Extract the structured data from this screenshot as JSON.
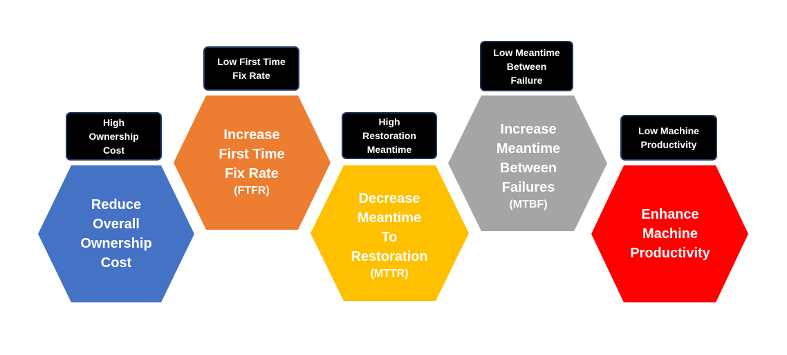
{
  "colors": {
    "blue": "#4472c4",
    "orange": "#ed7d31",
    "gold": "#ffc000",
    "gray": "#a5a5a5",
    "red": "#ff0000",
    "label_background": "#000000",
    "label_border": "#1f3864"
  },
  "items": [
    {
      "color": "#4472c4",
      "label": [
        "High",
        "Ownership",
        "Cost"
      ],
      "hex": [
        "Reduce",
        "Overall",
        "Ownership",
        "Cost"
      ],
      "abbr": ""
    },
    {
      "color": "#ed7d31",
      "label": [
        "Low First Time",
        "Fix Rate"
      ],
      "hex": [
        "Increase",
        "First Time",
        "Fix Rate"
      ],
      "abbr": "(FTFR)"
    },
    {
      "color": "#ffc000",
      "label": [
        "High",
        "Restoration",
        "Meantime"
      ],
      "hex": [
        "Decrease",
        "Meantime",
        "To",
        "Restoration"
      ],
      "abbr": "(MTTR)"
    },
    {
      "color": "#a5a5a5",
      "label": [
        "Low Meantime",
        "Between",
        "Failure"
      ],
      "hex": [
        "Increase",
        "Meantime",
        "Between",
        "Failures"
      ],
      "abbr": "(MTBF)"
    },
    {
      "color": "#ff0000",
      "label": [
        "Low Machine",
        "Productivity"
      ],
      "hex": [
        "Enhance",
        "Machine",
        "Productivity"
      ],
      "abbr": ""
    }
  ]
}
